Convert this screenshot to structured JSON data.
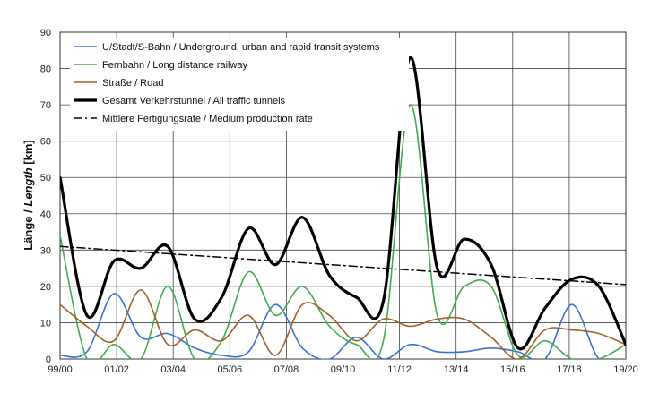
{
  "chart_data": {
    "type": "line",
    "ylabel_regular": "Länge / ",
    "ylabel_italic": "Length",
    "ylabel_unit": " [km]",
    "xlabel": "",
    "ylim": [
      0,
      90
    ],
    "y_ticks": [
      "0",
      "10",
      "20",
      "30",
      "40",
      "50",
      "60",
      "70",
      "80",
      "90"
    ],
    "x_tick_labels": [
      "99/00",
      "01/02",
      "03/04",
      "05/06",
      "07/08",
      "09/10",
      "11/12",
      "13/14",
      "15/16",
      "17/18",
      "19/20"
    ],
    "x_years": [
      1999,
      2000,
      2001,
      2002,
      2003,
      2004,
      2005,
      2006,
      2007,
      2008,
      2009,
      2010,
      2011,
      2012,
      2013,
      2014,
      2015,
      2016,
      2017,
      2018,
      2019,
      2020
    ],
    "grid": true,
    "legend_position": "top-left",
    "series": [
      {
        "name": "U/Stadt/S-Bahn / Underground, urban and rapid transit systems",
        "color": "#3b72d9",
        "width": 1.6,
        "dash": "",
        "values": [
          1,
          2,
          18,
          6,
          7,
          3,
          1,
          2,
          15,
          3,
          0,
          6,
          0,
          4,
          2,
          2,
          3,
          2,
          0,
          15,
          0,
          0
        ]
      },
      {
        "name": "Fernbahn / Long distance railway",
        "color": "#3fae49",
        "width": 1.6,
        "dash": "",
        "values": [
          34,
          0,
          4,
          0,
          20,
          0,
          5,
          24,
          12,
          20,
          9,
          4,
          5,
          70,
          12,
          20,
          20,
          1,
          5,
          0,
          0,
          4
        ]
      },
      {
        "name": "Straße / Road",
        "color": "#a0622c",
        "width": 1.6,
        "dash": "",
        "values": [
          15,
          9,
          5,
          19,
          4,
          8,
          5,
          12,
          1,
          15,
          12,
          5,
          11,
          9,
          11,
          11,
          6,
          0,
          8,
          8,
          7,
          4
        ]
      },
      {
        "name": "Gesamt Verkehrstunnel / All traffic tunnels",
        "color": "#000000",
        "width": 3.2,
        "dash": "",
        "values": [
          50,
          12,
          27,
          25,
          31,
          11,
          17,
          36,
          26,
          39,
          23,
          17,
          16,
          83,
          25,
          33,
          26,
          3,
          14,
          22,
          20,
          4
        ]
      },
      {
        "name": "Mittlere Fertigungsrate / Medium production rate",
        "color": "#000000",
        "width": 1.5,
        "dash": "9 4 2 4",
        "values": [
          31,
          30.5,
          30,
          29.5,
          29,
          28.5,
          28,
          27.5,
          27,
          26.5,
          26,
          25.5,
          25,
          24.5,
          24,
          23.5,
          23,
          22.5,
          22,
          21.5,
          21,
          20.5
        ]
      }
    ]
  }
}
